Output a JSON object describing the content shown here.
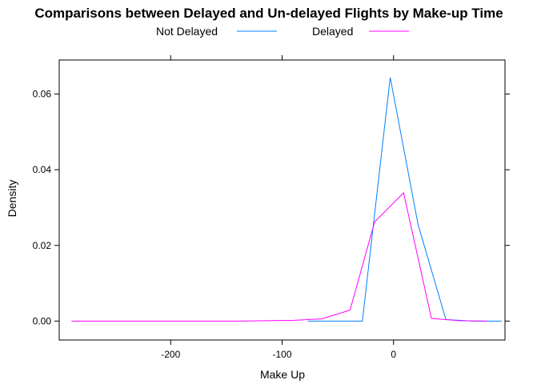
{
  "chart_data": {
    "type": "line",
    "title": "Comparisons between Delayed and Un-delayed Flights by Make-up Time",
    "xlabel": "Make Up",
    "ylabel": "Density",
    "xlim": [
      -300,
      100
    ],
    "ylim": [
      -0.005,
      0.069
    ],
    "x_ticks": [
      -200,
      -100,
      0
    ],
    "x_tick_labels": [
      "-200",
      "-100",
      "0"
    ],
    "y_ticks": [
      0,
      0.02,
      0.04,
      0.06
    ],
    "y_tick_labels": [
      "0.00",
      "0.02",
      "0.04",
      "0.06"
    ],
    "legend": "top",
    "grid": false,
    "series": [
      {
        "name": "Not Delayed",
        "color": "#0080ff",
        "x": [
          -77,
          -28,
          -3,
          22,
          47,
          72,
          97
        ],
        "y": [
          0,
          0,
          0.0644,
          0.0255,
          0.0004,
          0,
          0
        ]
      },
      {
        "name": "Delayed",
        "color": "#ff00ff",
        "x": [
          -289,
          -264,
          -239,
          -214,
          -189,
          -164,
          -139,
          -114,
          -89,
          -64,
          -39,
          -17,
          9,
          34,
          59,
          84
        ],
        "y": [
          0,
          0,
          0,
          0,
          0,
          0,
          0,
          0.0001,
          0.0002,
          0.0006,
          0.0029,
          0.0262,
          0.0339,
          0.0007,
          0.0001,
          0
        ]
      }
    ]
  }
}
